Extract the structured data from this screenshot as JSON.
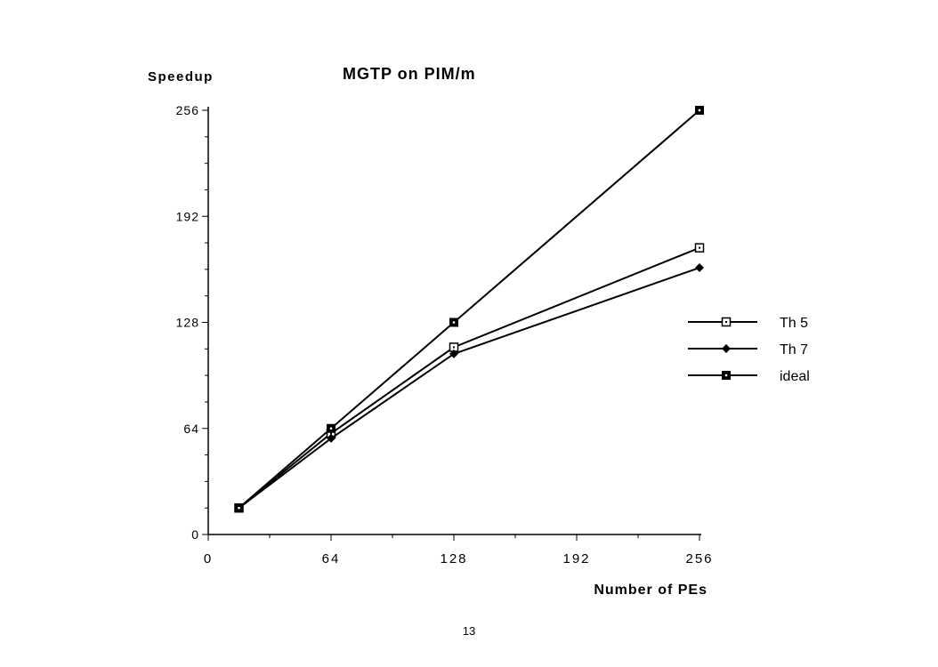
{
  "chart_data": {
    "type": "line",
    "title": "MGTP on PIM/m",
    "xlabel": "Number of PEs",
    "ylabel": "Speedup",
    "xlim": [
      0,
      256
    ],
    "ylim": [
      0,
      256
    ],
    "xticks": [
      0,
      64,
      128,
      192,
      256
    ],
    "yticks": [
      0,
      64,
      128,
      192,
      256
    ],
    "x": [
      16,
      64,
      128,
      256
    ],
    "series": [
      {
        "name": "Th 5",
        "marker": "open-square",
        "values": [
          16,
          61,
          113,
          173
        ]
      },
      {
        "name": "Th 7",
        "marker": "filled-diamond",
        "values": [
          16,
          58,
          109,
          161
        ]
      },
      {
        "name": "ideal",
        "marker": "filled-square",
        "values": [
          16,
          64,
          128,
          256
        ]
      }
    ],
    "legend": "right",
    "grid": false
  },
  "page_number": "13",
  "colors": {
    "line": "#000000",
    "background": "#ffffff"
  }
}
